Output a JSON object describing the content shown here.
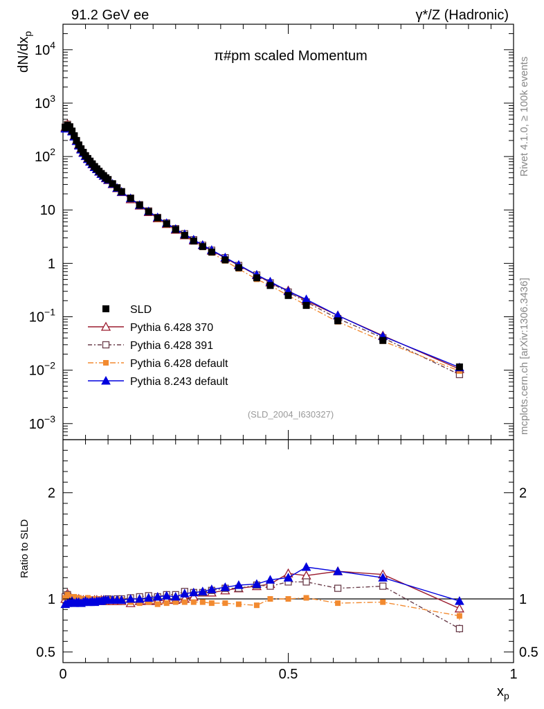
{
  "header": {
    "left_label": "91.2 GeV ee",
    "right_label": "γ*/Z (Hadronic)"
  },
  "side_labels": {
    "top": "Rivet 4.1.0, ≥ 100k events",
    "bottom": "mcplots.cern.ch [arXiv:1306.3436]"
  },
  "chart_data": {
    "type": "line",
    "title": "π#pm scaled Momentum",
    "analysis_tag": "(SLD_2004_I630327)",
    "ylabel": "dN/dx_p",
    "xlabel": "x_p",
    "ratio_ylabel": "Ratio to SLD",
    "xlim": [
      0,
      1
    ],
    "ylim": [
      0.0005,
      30000
    ],
    "yscale": "log",
    "ratio_ylim": [
      0.4,
      2.5
    ],
    "x_ticks": [
      {
        "value": 0,
        "label": "0"
      },
      {
        "value": 0.5,
        "label": "0.5"
      },
      {
        "value": 1,
        "label": "1"
      }
    ],
    "y_ticks": [
      {
        "value": 0.001,
        "base": "10",
        "exp": "−3"
      },
      {
        "value": 0.01,
        "base": "10",
        "exp": "−2"
      },
      {
        "value": 0.1,
        "base": "10",
        "exp": "−1"
      },
      {
        "value": 1,
        "base": "1",
        "exp": ""
      },
      {
        "value": 10,
        "base": "10",
        "exp": ""
      },
      {
        "value": 100,
        "base": "10",
        "exp": "2"
      },
      {
        "value": 1000,
        "base": "10",
        "exp": "3"
      },
      {
        "value": 10000,
        "base": "10",
        "exp": "4"
      }
    ],
    "ratio_ticks": [
      {
        "value": 0.5,
        "label": "0.5"
      },
      {
        "value": 1,
        "label": "1"
      },
      {
        "value": 2,
        "label": "2"
      }
    ],
    "x": [
      0.005,
      0.01,
      0.015,
      0.02,
      0.025,
      0.03,
      0.035,
      0.04,
      0.045,
      0.05,
      0.055,
      0.06,
      0.065,
      0.07,
      0.075,
      0.08,
      0.085,
      0.09,
      0.095,
      0.1,
      0.11,
      0.12,
      0.13,
      0.15,
      0.17,
      0.19,
      0.21,
      0.23,
      0.25,
      0.27,
      0.29,
      0.31,
      0.33,
      0.36,
      0.39,
      0.43,
      0.46,
      0.5,
      0.54,
      0.61,
      0.71,
      0.88
    ],
    "series": [
      {
        "name": "SLD",
        "style": "data",
        "color": "#000000",
        "values": [
          350,
          385,
          360,
          300,
          245,
          200,
          165,
          140,
          120,
          104,
          92,
          82,
          73,
          65,
          59,
          53,
          48,
          44,
          40,
          37,
          31,
          26,
          22,
          16.5,
          12.3,
          9.3,
          7.1,
          5.5,
          4.3,
          3.35,
          2.62,
          2.06,
          1.63,
          1.16,
          0.83,
          0.535,
          0.385,
          0.25,
          0.163,
          0.084,
          0.036,
          0.0115
        ]
      },
      {
        "name": "Pythia 6.428 370",
        "style": "open-triangle",
        "color": "#9b1b2e",
        "ratio": [
          1.0,
          1.05,
          1.03,
          1.0,
          0.98,
          0.99,
          1.0,
          0.99,
          0.99,
          0.98,
          0.99,
          0.99,
          0.98,
          0.99,
          0.99,
          0.98,
          0.99,
          0.99,
          0.98,
          0.98,
          0.98,
          0.98,
          0.98,
          0.96,
          0.98,
          0.98,
          0.98,
          0.99,
          0.99,
          1.0,
          1.02,
          1.06,
          1.06,
          1.08,
          1.1,
          1.12,
          1.14,
          1.24,
          1.22,
          1.26,
          1.23,
          0.91
        ]
      },
      {
        "name": "Pythia 6.428 391",
        "style": "open-square",
        "color": "#6a3d4a",
        "ratio": [
          1.02,
          1.04,
          1.0,
          0.99,
          0.98,
          0.98,
          0.99,
          0.98,
          0.98,
          0.98,
          0.98,
          0.99,
          0.98,
          0.99,
          0.98,
          0.99,
          0.99,
          0.98,
          0.99,
          1.0,
          0.99,
          1.0,
          1.0,
          1.01,
          1.02,
          1.03,
          1.02,
          1.04,
          1.04,
          1.07,
          1.06,
          1.06,
          1.08,
          1.1,
          1.1,
          1.13,
          1.12,
          1.16,
          1.16,
          1.1,
          1.12,
          0.72
        ]
      },
      {
        "name": "Pythia 6.428 default",
        "style": "filled-square-dashdot",
        "color": "#f28a30",
        "ratio": [
          1.01,
          1.04,
          1.02,
          1.01,
          1.02,
          1.01,
          1.01,
          1.0,
          1.0,
          1.0,
          1.01,
          0.99,
          1.0,
          1.0,
          1.0,
          1.0,
          1.0,
          1.0,
          0.99,
          0.99,
          0.99,
          0.98,
          0.99,
          0.97,
          0.96,
          0.97,
          0.95,
          0.96,
          0.97,
          0.97,
          0.97,
          0.97,
          0.96,
          0.96,
          0.95,
          0.94,
          1.0,
          1.0,
          1.01,
          0.96,
          0.97,
          0.84
        ]
      },
      {
        "name": "Pythia 8.243 default",
        "style": "filled-triangle",
        "color": "#0000dd",
        "ratio": [
          0.95,
          0.96,
          0.97,
          0.98,
          0.96,
          0.97,
          0.97,
          0.96,
          0.97,
          0.98,
          0.97,
          0.97,
          0.98,
          0.97,
          0.98,
          0.98,
          0.98,
          0.99,
          0.99,
          0.99,
          0.99,
          0.99,
          0.99,
          1.0,
          1.0,
          1.01,
          1.02,
          1.03,
          1.02,
          1.05,
          1.06,
          1.07,
          1.09,
          1.11,
          1.13,
          1.14,
          1.18,
          1.2,
          1.3,
          1.26,
          1.2,
          0.98
        ]
      }
    ],
    "legend": {
      "placement": "center-left",
      "entries": [
        "SLD",
        "Pythia 6.428 370",
        "Pythia 6.428 391",
        "Pythia 6.428 default",
        "Pythia 8.243 default"
      ]
    }
  }
}
